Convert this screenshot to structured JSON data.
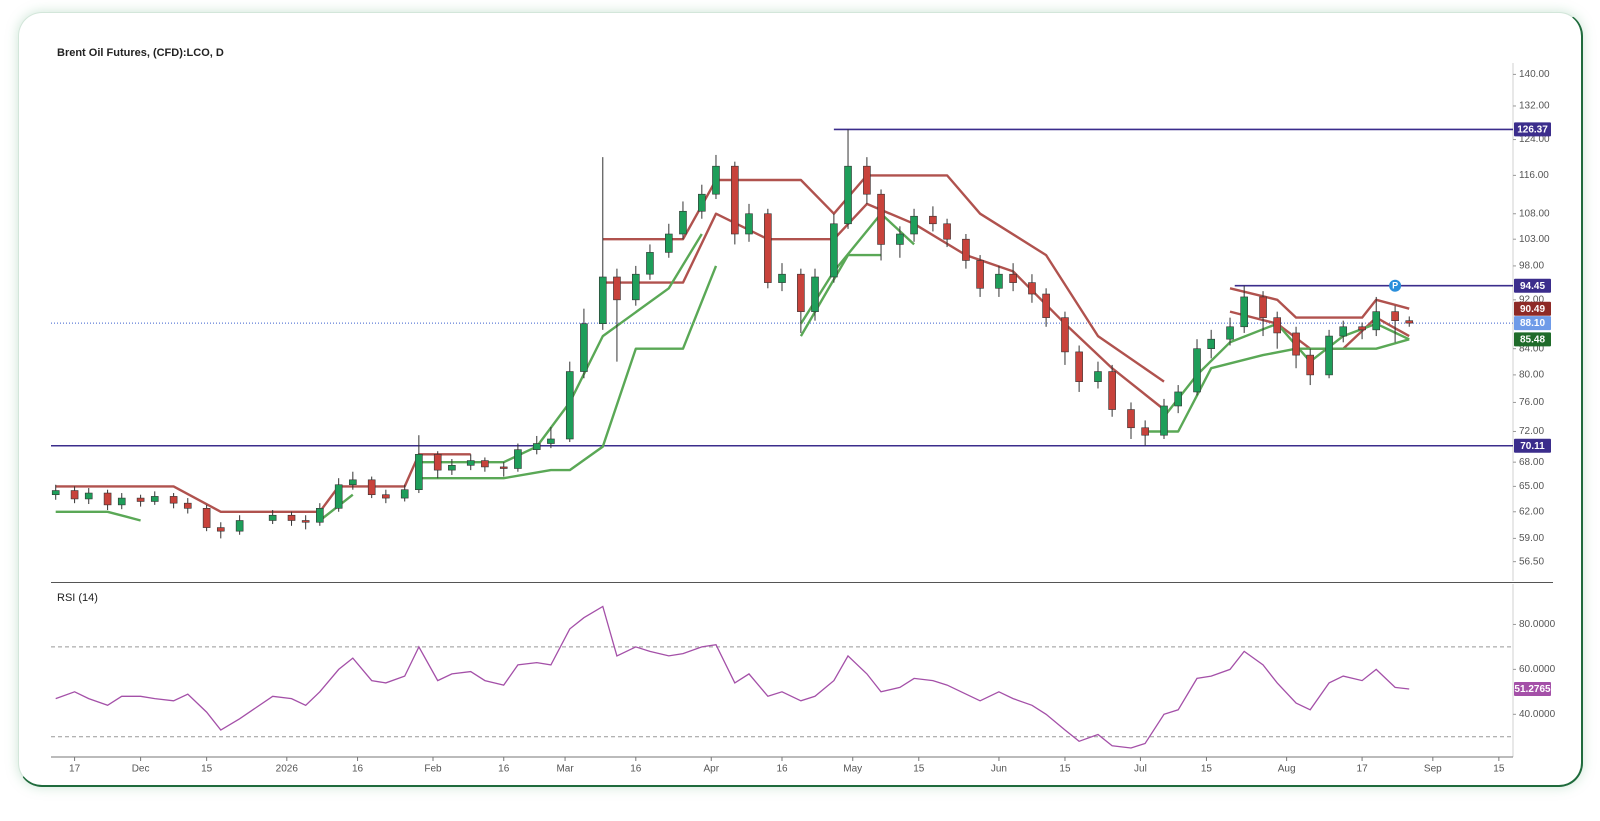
{
  "chart_data": [
    {
      "type": "candlestick",
      "title": "Brent Oil Futures, (CFD):LCO, D",
      "log": true,
      "up_color": "#1e9e5a",
      "down_color": "#c8423b",
      "xlim": [
        "2025-11-12",
        "2026-09-18"
      ],
      "ylim": [
        54.5,
        143
      ],
      "yticks": [
        {
          "value": 140,
          "label": "140.00"
        },
        {
          "value": 132,
          "label": "132.00"
        },
        {
          "value": 124,
          "label": "124.00"
        },
        {
          "value": 116,
          "label": "116.00"
        },
        {
          "value": 108,
          "label": "108.00"
        },
        {
          "value": 103,
          "label": "103.00"
        },
        {
          "value": 98,
          "label": "98.00"
        },
        {
          "value": 92,
          "label": "92.00"
        },
        {
          "value": 84,
          "label": "84.00"
        },
        {
          "value": 80,
          "label": "80.00"
        },
        {
          "value": 76,
          "label": "76.00"
        },
        {
          "value": 72,
          "label": "72.00"
        },
        {
          "value": 68,
          "label": "68.00"
        },
        {
          "value": 65,
          "label": "65.00"
        },
        {
          "value": 62,
          "label": "62.00"
        },
        {
          "value": 59,
          "label": "59.00"
        },
        {
          "value": 56.5,
          "label": "56.50"
        }
      ],
      "x": [
        "2025-11-13",
        "2025-11-17",
        "2025-11-20",
        "2025-11-24",
        "2025-11-27",
        "2025-12-01",
        "2025-12-04",
        "2025-12-08",
        "2025-12-11",
        "2025-12-15",
        "2025-12-18",
        "2025-12-22",
        "2025-12-29",
        "2026-01-02",
        "2026-01-05",
        "2026-01-08",
        "2026-01-12",
        "2026-01-15",
        "2026-01-19",
        "2026-01-22",
        "2026-01-26",
        "2026-01-29",
        "2026-02-02",
        "2026-02-05",
        "2026-02-09",
        "2026-02-12",
        "2026-02-16",
        "2026-02-19",
        "2026-02-23",
        "2026-02-26",
        "2026-03-02",
        "2026-03-05",
        "2026-03-09",
        "2026-03-12",
        "2026-03-16",
        "2026-03-19",
        "2026-03-23",
        "2026-03-26",
        "2026-03-30",
        "2026-04-02",
        "2026-04-06",
        "2026-04-09",
        "2026-04-13",
        "2026-04-16",
        "2026-04-20",
        "2026-04-23",
        "2026-04-27",
        "2026-04-30",
        "2026-05-04",
        "2026-05-07",
        "2026-05-11",
        "2026-05-14",
        "2026-05-18",
        "2026-05-21",
        "2026-05-25",
        "2026-05-28",
        "2026-06-01",
        "2026-06-04",
        "2026-06-08",
        "2026-06-11",
        "2026-06-15",
        "2026-06-18",
        "2026-06-22",
        "2026-06-25",
        "2026-06-29",
        "2026-07-02",
        "2026-07-06",
        "2026-07-09",
        "2026-07-13",
        "2026-07-16",
        "2026-07-20",
        "2026-07-23",
        "2026-07-27",
        "2026-07-30",
        "2026-08-03",
        "2026-08-06",
        "2026-08-10",
        "2026-08-13",
        "2026-08-17",
        "2026-08-20",
        "2026-08-24",
        "2026-08-27"
      ],
      "open": [
        64.0,
        64.5,
        63.5,
        64.2,
        62.8,
        63.6,
        63.2,
        63.8,
        63.0,
        62.4,
        60.2,
        59.8,
        61.0,
        61.6,
        61.0,
        60.8,
        62.4,
        65.2,
        65.8,
        64.0,
        63.6,
        64.6,
        69.0,
        67.0,
        67.6,
        68.2,
        67.4,
        67.2,
        69.6,
        70.4,
        71.0,
        80.5,
        88.0,
        96.0,
        92.0,
        96.5,
        100.5,
        104.0,
        108.5,
        112.0,
        118.0,
        104.0,
        108.0,
        95.0,
        96.5,
        90.0,
        96.0,
        106.0,
        118.0,
        112.0,
        102.0,
        104.0,
        107.5,
        106.0,
        103.0,
        99.0,
        94.0,
        96.5,
        95.0,
        93.0,
        89.0,
        83.5,
        79.0,
        80.5,
        75.0,
        72.5,
        71.5,
        75.5,
        77.5,
        84.0,
        85.5,
        87.5,
        92.5,
        89.0,
        86.5,
        83.0,
        80.0,
        86.0,
        87.5,
        87.0,
        90.0,
        88.5
      ],
      "high": [
        65.2,
        65.0,
        64.8,
        64.6,
        64.2,
        64.0,
        64.4,
        64.2,
        63.6,
        62.8,
        60.8,
        61.6,
        62.2,
        62.0,
        61.6,
        63.0,
        66.0,
        66.8,
        66.2,
        64.6,
        65.2,
        71.5,
        69.4,
        68.4,
        69.0,
        68.6,
        68.0,
        70.4,
        71.4,
        72.6,
        82.0,
        90.5,
        120.0,
        97.5,
        98.0,
        102.0,
        106.0,
        110.5,
        114.0,
        120.5,
        119.0,
        110.0,
        109.0,
        98.5,
        97.5,
        97.5,
        108.0,
        126.37,
        120.0,
        113.0,
        105.5,
        109.0,
        109.5,
        107.0,
        104.0,
        100.0,
        98.0,
        98.5,
        96.5,
        94.0,
        90.0,
        84.5,
        82.0,
        81.5,
        76.0,
        73.5,
        76.5,
        78.5,
        85.5,
        87.0,
        89.0,
        94.45,
        93.5,
        90.0,
        87.5,
        84.0,
        87.0,
        88.5,
        88.2,
        92.5,
        91.0,
        89.2
      ],
      "low": [
        63.4,
        63.0,
        62.9,
        62.2,
        62.3,
        62.6,
        62.8,
        62.4,
        61.8,
        59.8,
        59.0,
        59.4,
        60.6,
        60.4,
        60.0,
        60.4,
        62.0,
        64.6,
        63.6,
        63.0,
        63.2,
        64.2,
        66.0,
        66.4,
        67.0,
        66.8,
        66.2,
        66.8,
        69.0,
        69.8,
        70.6,
        79.5,
        87.0,
        82.0,
        91.0,
        95.5,
        99.5,
        103.0,
        107.0,
        111.0,
        102.0,
        102.5,
        94.0,
        93.5,
        86.5,
        88.5,
        95.0,
        105.0,
        110.0,
        99.0,
        99.5,
        102.5,
        104.5,
        101.5,
        97.5,
        92.5,
        92.5,
        93.5,
        91.5,
        87.5,
        81.5,
        77.5,
        78.0,
        74.0,
        71.0,
        70.11,
        71.0,
        74.5,
        77.0,
        82.5,
        84.5,
        86.5,
        86.0,
        84.0,
        81.0,
        78.5,
        79.5,
        85.0,
        85.5,
        86.0,
        85.0,
        87.5
      ],
      "close": [
        64.5,
        63.5,
        64.2,
        62.8,
        63.6,
        63.2,
        63.8,
        63.0,
        62.4,
        60.2,
        59.8,
        61.0,
        61.6,
        61.0,
        60.8,
        62.4,
        65.2,
        65.8,
        64.0,
        63.6,
        64.6,
        69.0,
        67.0,
        67.6,
        68.2,
        67.4,
        67.2,
        69.6,
        70.4,
        71.0,
        80.5,
        88.0,
        96.0,
        92.0,
        96.5,
        100.5,
        104.0,
        108.5,
        112.0,
        118.0,
        104.0,
        108.0,
        95.0,
        96.5,
        90.0,
        96.0,
        106.0,
        118.0,
        112.0,
        102.0,
        104.0,
        107.5,
        106.0,
        103.0,
        99.0,
        94.0,
        96.5,
        95.0,
        93.0,
        89.0,
        83.5,
        79.0,
        80.5,
        75.0,
        72.5,
        71.5,
        75.5,
        77.5,
        84.0,
        85.5,
        87.5,
        92.5,
        89.0,
        86.5,
        83.0,
        80.0,
        86.0,
        87.5,
        87.0,
        90.0,
        88.5,
        88.1
      ],
      "lines": [
        {
          "color": "#b0524e",
          "label_color": "#8e2a26",
          "show_last": true,
          "x": [
            "2025-11-13",
            "2025-12-08",
            "2025-12-18",
            "2026-01-08",
            "2026-01-12",
            "2026-01-26",
            "2026-01-29",
            "2026-02-09",
            "2026-02-16",
            "2026-03-09",
            "2026-03-26",
            "2026-04-02",
            "2026-04-20",
            "2026-04-27",
            "2026-05-04",
            "2026-05-21",
            "2026-05-28",
            "2026-06-11",
            "2026-06-22",
            "2026-07-06",
            "2026-07-13",
            "2026-07-20",
            "2026-07-30",
            "2026-08-03",
            "2026-08-17",
            "2026-08-20",
            "2026-08-27"
          ],
          "values": [
            65,
            65,
            62,
            62,
            65,
            65,
            69,
            69,
            null,
            103,
            103,
            115,
            115,
            108,
            116,
            116,
            108,
            100,
            86,
            79,
            null,
            94,
            92,
            89,
            89,
            92,
            90.49
          ]
        },
        {
          "color": "#b0524e",
          "show_last": false,
          "x": [
            "2026-03-09",
            "2026-03-26",
            "2026-04-02",
            "2026-04-13",
            "2026-04-27",
            "2026-05-04",
            "2026-05-14",
            "2026-05-25",
            "2026-06-04",
            "2026-06-15",
            "2026-06-25",
            "2026-07-06",
            "2026-07-13",
            "2026-07-20",
            "2026-07-30",
            "2026-08-06",
            "2026-08-13",
            "2026-08-20",
            "2026-08-27"
          ],
          "values": [
            95,
            95,
            108,
            103,
            103,
            110,
            106,
            100,
            97,
            88,
            81,
            75,
            null,
            90,
            88,
            84,
            84,
            89,
            86
          ]
        },
        {
          "color": "#5aa856",
          "label_color": "#1f6b2a",
          "show_last": true,
          "x": [
            "2025-11-13",
            "2025-11-24",
            "2025-12-01",
            "2025-12-11",
            "2026-01-08",
            "2026-01-15",
            "2026-01-22",
            "2026-01-29",
            "2026-02-16",
            "2026-02-23",
            "2026-03-02",
            "2026-03-09",
            "2026-03-23",
            "2026-03-30",
            "2026-04-06",
            "2026-04-20",
            "2026-04-27",
            "2026-05-07",
            "2026-05-14",
            "2026-05-21",
            "2026-07-06",
            "2026-07-13",
            "2026-07-20",
            "2026-07-30",
            "2026-08-06",
            "2026-08-13",
            "2026-08-20",
            "2026-08-27"
          ],
          "values": [
            62,
            62,
            61,
            null,
            61,
            64,
            null,
            68,
            68,
            70,
            76,
            86,
            94,
            104,
            null,
            88,
            97,
            108,
            102,
            null,
            74,
            80,
            85,
            88,
            82,
            86,
            88,
            85.48
          ]
        },
        {
          "color": "#5aa856",
          "show_last": false,
          "x": [
            "2026-01-29",
            "2026-02-16",
            "2026-02-26",
            "2026-03-02",
            "2026-03-09",
            "2026-03-16",
            "2026-03-26",
            "2026-04-02",
            "2026-04-06",
            "2026-04-20",
            "2026-04-30",
            "2026-05-07",
            "2026-05-14",
            "2026-07-02",
            "2026-07-09",
            "2026-07-16",
            "2026-07-27",
            "2026-08-03",
            "2026-08-13",
            "2026-08-20",
            "2026-08-27"
          ],
          "values": [
            66,
            66,
            67,
            67,
            70,
            84,
            84,
            98,
            null,
            86,
            100,
            100,
            null,
            72,
            72,
            81,
            83,
            84,
            84,
            84,
            85.48
          ]
        }
      ],
      "level_color": "#3b2d8c",
      "levels": [
        {
          "value": 126.37,
          "from": "2026-04-27"
        },
        {
          "value": 94.45,
          "from": "2026-07-21"
        },
        {
          "value": 70.11
        }
      ],
      "last_price": {
        "value": 88.1,
        "label": "88.10",
        "color": "#6f9be8"
      },
      "pivot": {
        "label": "P",
        "x": "2026-08-24",
        "value": 94.45,
        "color": "#2b8fdb"
      }
    },
    {
      "type": "line",
      "title": "RSI (14)",
      "xlim": [
        "2025-11-12",
        "2026-09-18"
      ],
      "ylim": [
        21,
        98
      ],
      "yticks": [
        {
          "value": 80,
          "label": "80.0000"
        },
        {
          "value": 60,
          "label": "60.0000"
        },
        {
          "value": 40,
          "label": "40.0000"
        }
      ],
      "bands": [
        70,
        30
      ],
      "xticks": [
        {
          "value": "2025-11-17",
          "label": "17"
        },
        {
          "value": "2025-12-01",
          "label": "Dec"
        },
        {
          "value": "2025-12-15",
          "label": "15"
        },
        {
          "value": "2026-01-01",
          "label": "2026"
        },
        {
          "value": "2026-01-16",
          "label": "16"
        },
        {
          "value": "2026-02-01",
          "label": "Feb"
        },
        {
          "value": "2026-02-16",
          "label": "16"
        },
        {
          "value": "2026-03-01",
          "label": "Mar"
        },
        {
          "value": "2026-03-16",
          "label": "16"
        },
        {
          "value": "2026-04-01",
          "label": "Apr"
        },
        {
          "value": "2026-04-16",
          "label": "16"
        },
        {
          "value": "2026-05-01",
          "label": "May"
        },
        {
          "value": "2026-05-15",
          "label": "15"
        },
        {
          "value": "2026-06-01",
          "label": "Jun"
        },
        {
          "value": "2026-06-15",
          "label": "15"
        },
        {
          "value": "2026-07-01",
          "label": "Jul"
        },
        {
          "value": "2026-07-15",
          "label": "15"
        },
        {
          "value": "2026-08-01",
          "label": "Aug"
        },
        {
          "value": "2026-08-17",
          "label": "17"
        },
        {
          "value": "2026-09-01",
          "label": "Sep"
        },
        {
          "value": "2026-09-15",
          "label": "15"
        }
      ],
      "x": [
        "2025-11-13",
        "2025-11-17",
        "2025-11-20",
        "2025-11-24",
        "2025-11-27",
        "2025-12-01",
        "2025-12-04",
        "2025-12-08",
        "2025-12-11",
        "2025-12-15",
        "2025-12-18",
        "2025-12-22",
        "2025-12-29",
        "2026-01-02",
        "2026-01-05",
        "2026-01-08",
        "2026-01-12",
        "2026-01-15",
        "2026-01-19",
        "2026-01-22",
        "2026-01-26",
        "2026-01-29",
        "2026-02-02",
        "2026-02-05",
        "2026-02-09",
        "2026-02-12",
        "2026-02-16",
        "2026-02-19",
        "2026-02-23",
        "2026-02-26",
        "2026-03-02",
        "2026-03-05",
        "2026-03-09",
        "2026-03-12",
        "2026-03-16",
        "2026-03-19",
        "2026-03-23",
        "2026-03-26",
        "2026-03-30",
        "2026-04-02",
        "2026-04-06",
        "2026-04-09",
        "2026-04-13",
        "2026-04-16",
        "2026-04-20",
        "2026-04-23",
        "2026-04-27",
        "2026-04-30",
        "2026-05-04",
        "2026-05-07",
        "2026-05-11",
        "2026-05-14",
        "2026-05-18",
        "2026-05-21",
        "2026-05-25",
        "2026-05-28",
        "2026-06-01",
        "2026-06-04",
        "2026-06-08",
        "2026-06-11",
        "2026-06-15",
        "2026-06-18",
        "2026-06-22",
        "2026-06-25",
        "2026-06-29",
        "2026-07-02",
        "2026-07-06",
        "2026-07-09",
        "2026-07-13",
        "2026-07-16",
        "2026-07-20",
        "2026-07-23",
        "2026-07-27",
        "2026-07-30",
        "2026-08-03",
        "2026-08-06",
        "2026-08-10",
        "2026-08-13",
        "2026-08-17",
        "2026-08-20",
        "2026-08-24",
        "2026-08-27"
      ],
      "series": [
        {
          "color": "#a450a8",
          "values": [
            47,
            50,
            47,
            44,
            48,
            48,
            47,
            46,
            49,
            41,
            33,
            38,
            48,
            47,
            44,
            50,
            60,
            65,
            55,
            54,
            57,
            70,
            55,
            58,
            59,
            55,
            53,
            62,
            63,
            62,
            78,
            83,
            88,
            66,
            70,
            68,
            66,
            67,
            70,
            71,
            54,
            58,
            48,
            50,
            46,
            48,
            55,
            66,
            58,
            50,
            52,
            56,
            55,
            53,
            49,
            46,
            50,
            47,
            44,
            40,
            33,
            28,
            31,
            26,
            25,
            27,
            40,
            42,
            56,
            57,
            60,
            68,
            62,
            54,
            45,
            42,
            54,
            57,
            55,
            60,
            52,
            51.2765
          ]
        }
      ]
    }
  ]
}
